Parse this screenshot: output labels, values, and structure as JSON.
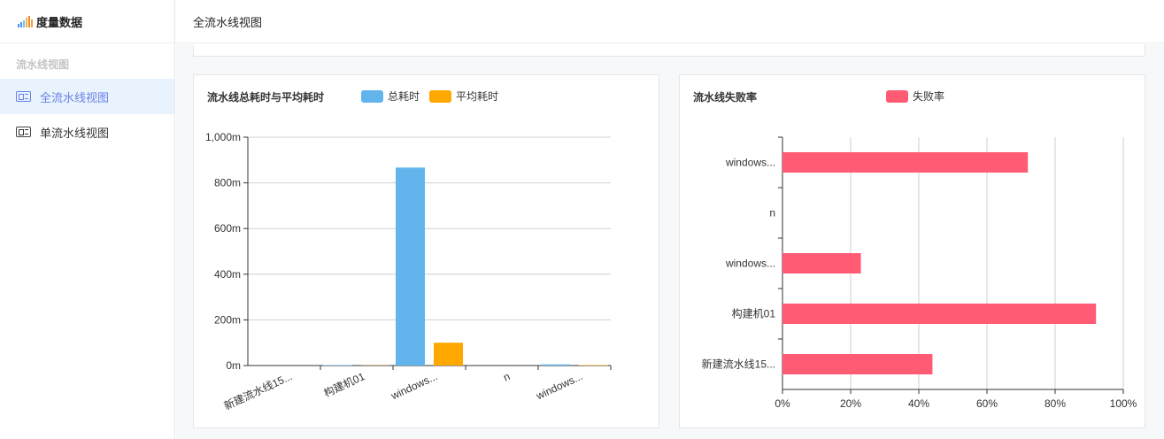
{
  "app": {
    "title": "度量数据",
    "logo_colors": [
      "#4b8ff1",
      "#4b8ff1",
      "#6fc2f2",
      "#f6b33d",
      "#f08a2d",
      "#f3a03a"
    ]
  },
  "sidebar": {
    "group_label": "流水线视图",
    "items": [
      {
        "label": "全流水线视图",
        "icon": "card-icon",
        "active": true
      },
      {
        "label": "单流水线视图",
        "icon": "card-icon",
        "active": false
      }
    ]
  },
  "header": {
    "title": "全流水线视图"
  },
  "colors": {
    "total_time": "#62b4ec",
    "avg_time": "#fea800",
    "fail_rate": "#ff5b74",
    "accent": "#6a7fe6"
  },
  "chart_data": [
    {
      "type": "bar",
      "title": "流水线总耗时与平均耗时",
      "categories": [
        "新建流水线15...",
        "构建机01",
        "windows...",
        "n",
        "windows..."
      ],
      "series": [
        {
          "name": "总耗时",
          "values": [
            0,
            2,
            867,
            0,
            5
          ]
        },
        {
          "name": "平均耗时",
          "values": [
            0,
            1,
            100,
            0,
            2
          ]
        }
      ],
      "ylim": [
        0,
        1000
      ],
      "yticks": [
        "0m",
        "200m",
        "400m",
        "600m",
        "800m",
        "1,000m"
      ],
      "grid": true,
      "legend": "top"
    },
    {
      "type": "bar",
      "orientation": "horizontal",
      "title": "流水线失败率",
      "categories": [
        "新建流水线15...",
        "构建机01",
        "windows...",
        "n",
        "windows..."
      ],
      "series": [
        {
          "name": "失败率",
          "values": [
            44,
            92,
            23,
            0,
            72
          ]
        }
      ],
      "xlim": [
        0,
        100
      ],
      "xticks": [
        "0%",
        "20%",
        "40%",
        "60%",
        "80%",
        "100%"
      ],
      "grid": true,
      "legend": "top"
    }
  ]
}
